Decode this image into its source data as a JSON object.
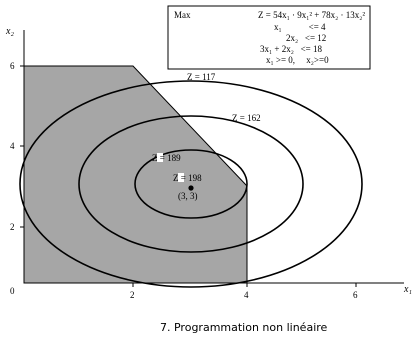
{
  "problem": {
    "objective_keyword": "Max",
    "objective": "Z = 54x₁ · 9x₁² + 78x₂ · 13x₂²",
    "constraints": [
      "x₁            <= 4",
      "2x₂   <= 12",
      "3x₁ + 2x₂   <= 18",
      "x₁ >= 0,     x₂>=0"
    ]
  },
  "axes": {
    "x_label": "x₁",
    "y_label": "x₂",
    "x_ticks": [
      "0",
      "2",
      "4",
      "6"
    ],
    "y_ticks": [
      "2",
      "4",
      "6"
    ]
  },
  "contours": [
    {
      "label": "Z = 117",
      "value": 117
    },
    {
      "label": "Z = 162",
      "value": 162
    },
    {
      "label": "Z = 189",
      "value": 189
    },
    {
      "label": "Z = 198",
      "value": 198
    }
  ],
  "optimum": {
    "label": "(3, 3)",
    "x": 3,
    "y": 3
  },
  "feasible_region": {
    "vertices": [
      [
        0,
        0
      ],
      [
        4,
        0
      ],
      [
        4,
        3
      ],
      [
        2,
        6
      ],
      [
        0,
        6
      ]
    ],
    "fill": "#a6a6a6"
  },
  "caption": "7. Programmation non linéaire"
}
